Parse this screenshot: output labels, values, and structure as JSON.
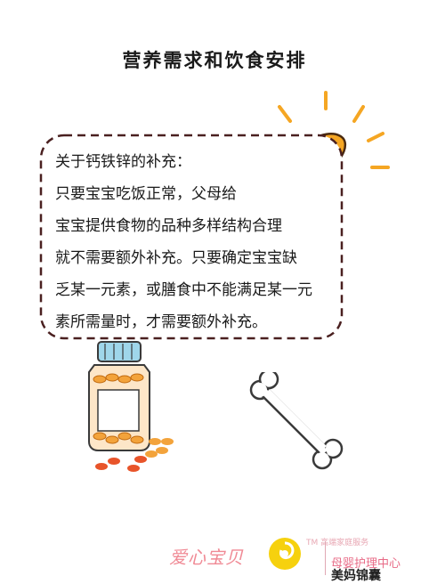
{
  "title": "营养需求和饮食安排",
  "card": {
    "lines": [
      "关于钙铁锌的补充：",
      "只要宝宝吃饭正常，父母给",
      "宝宝提供食物的品种多样结构合理",
      "就不需要额外补充。只要确定宝宝缺",
      "乏某一元素，或膳食中不能满足某一元",
      "素所需量时，才需要额外补充。"
    ]
  },
  "footer": {
    "brand_red": "爱心宝贝",
    "tm_text": "TM 高端家庭服务",
    "sub_text": "母婴护理中心",
    "brand_dark": "美妈锦囊"
  },
  "colors": {
    "bulb": "#f5a623",
    "card_border": "#4a2020",
    "pills": "#f3a33b",
    "bottle_cap": "#9fd6ea"
  },
  "icons": [
    "light-bulb-icon",
    "pill-bottle-icon",
    "bone-icon",
    "brand-logo-icon"
  ]
}
